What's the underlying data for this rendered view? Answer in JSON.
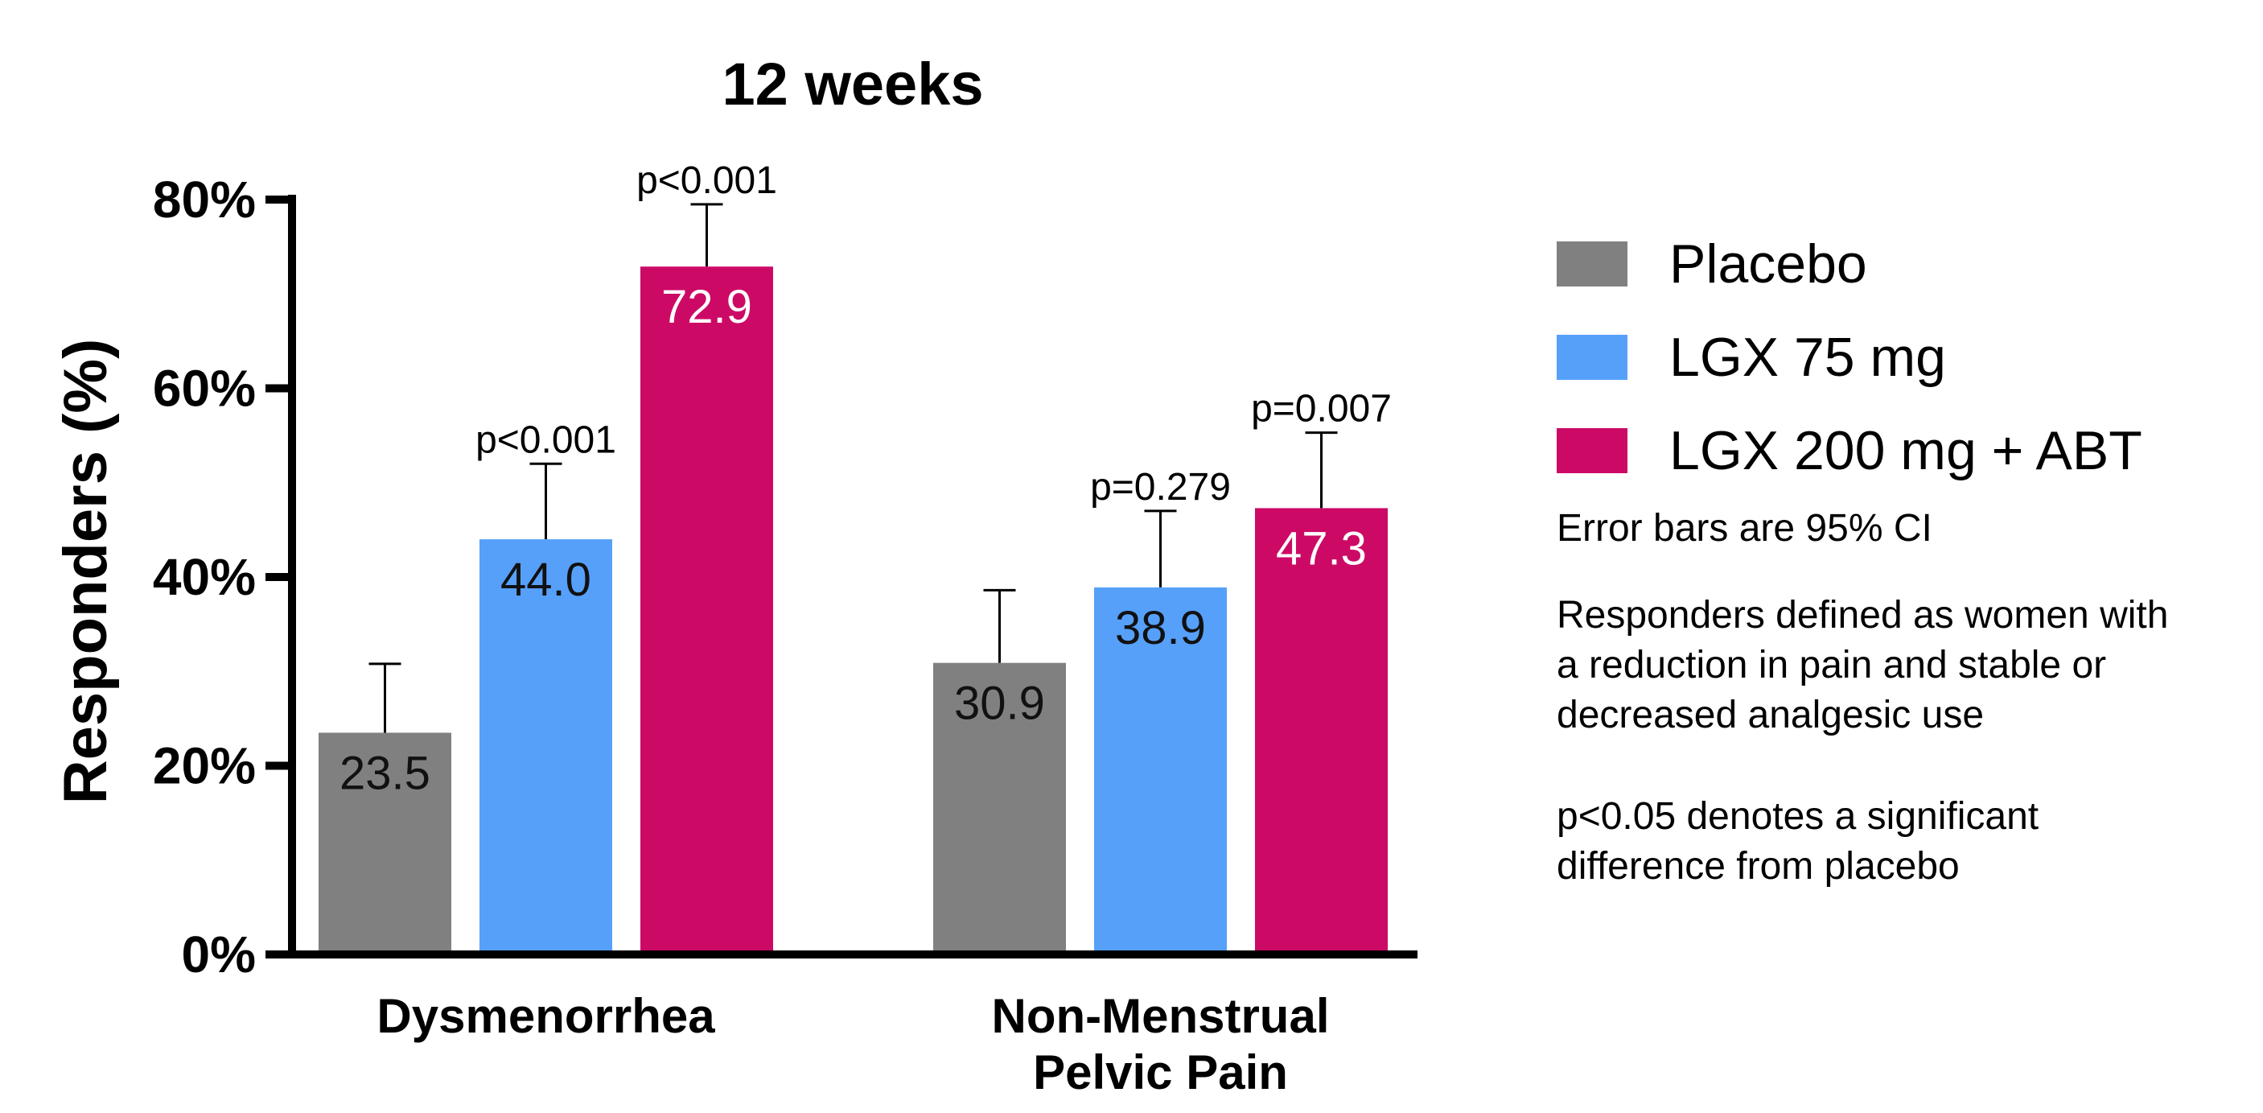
{
  "chart_data": {
    "type": "bar",
    "title": "12 weeks",
    "ylabel": "Responders (%)",
    "xlabel": "",
    "ylim": [
      0,
      80
    ],
    "yticks": [
      0,
      20,
      40,
      60,
      80
    ],
    "ytick_labels": [
      "0%",
      "20%",
      "40%",
      "60%",
      "80%"
    ],
    "categories": [
      "Dysmenorrhea",
      "Non-Menstrual Pelvic Pain"
    ],
    "category_labels": [
      [
        "Dysmenorrhea"
      ],
      [
        "Non-Menstrual",
        "Pelvic Pain"
      ]
    ],
    "series": [
      {
        "name": "Placebo",
        "color": "#808080",
        "label_color": "#111111",
        "values": [
          23.5,
          30.9
        ],
        "value_labels": [
          "23.5",
          "30.9"
        ],
        "ci_upper": [
          30.8,
          38.6
        ],
        "pvalues": [
          "",
          ""
        ]
      },
      {
        "name": "LGX 75 mg",
        "color": "#56A0FA",
        "label_color": "#111111",
        "values": [
          44.0,
          38.9
        ],
        "value_labels": [
          "44.0",
          "38.9"
        ],
        "ci_upper": [
          52.0,
          47.0
        ],
        "pvalues": [
          "p<0.001",
          "p=0.279"
        ]
      },
      {
        "name": "LGX 200 mg + ABT",
        "color": "#CC0A66",
        "label_color": "#ffffff",
        "values": [
          72.9,
          47.3
        ],
        "value_labels": [
          "72.9",
          "47.3"
        ],
        "ci_upper": [
          79.5,
          55.3
        ],
        "pvalues": [
          "p<0.001",
          "p=0.007"
        ]
      }
    ],
    "legend_position": "right",
    "grid": false
  },
  "notes": {
    "error_bars": "Error bars are 95% CI",
    "responders_lines": [
      "Responders defined as women with",
      "a reduction in pain and stable or",
      "decreased analgesic use"
    ],
    "significance_lines": [
      "p<0.05 denotes a significant",
      "difference from placebo"
    ]
  }
}
